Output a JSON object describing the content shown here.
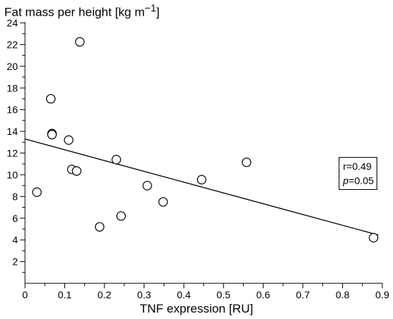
{
  "chart_data": {
    "type": "scatter",
    "ylabel_main": "Fat mass per height [kg m",
    "ylabel_sup": "−1",
    "ylabel_end": "]",
    "xlabel": "TNF expression [RU]",
    "xlim": [
      0,
      0.9
    ],
    "ylim": [
      0,
      24
    ],
    "x_ticks": [
      "0",
      "0.1",
      "0.2",
      "0.3",
      "0.4",
      "0.5",
      "0.6",
      "0.7",
      "0.8",
      "0.9"
    ],
    "y_ticks": [
      "2",
      "4",
      "6",
      "8",
      "10",
      "12",
      "14",
      "16",
      "18",
      "20",
      "22",
      "24"
    ],
    "points": [
      {
        "x": 0.03,
        "y": 8.4
      },
      {
        "x": 0.065,
        "y": 17.0
      },
      {
        "x": 0.068,
        "y": 13.8
      },
      {
        "x": 0.068,
        "y": 13.7
      },
      {
        "x": 0.11,
        "y": 13.2
      },
      {
        "x": 0.118,
        "y": 10.5
      },
      {
        "x": 0.13,
        "y": 10.35
      },
      {
        "x": 0.138,
        "y": 22.25
      },
      {
        "x": 0.188,
        "y": 5.2
      },
      {
        "x": 0.23,
        "y": 11.4
      },
      {
        "x": 0.242,
        "y": 6.2
      },
      {
        "x": 0.308,
        "y": 9.0
      },
      {
        "x": 0.348,
        "y": 7.5
      },
      {
        "x": 0.445,
        "y": 9.55
      },
      {
        "x": 0.558,
        "y": 11.15
      },
      {
        "x": 0.878,
        "y": 4.2
      }
    ],
    "regression": {
      "x1": 0.0,
      "y1": 13.3,
      "x2": 0.89,
      "y2": 4.45
    },
    "stats": {
      "r": "r=0.49",
      "p_symbol": "p",
      "p_value": "=0.05"
    }
  }
}
